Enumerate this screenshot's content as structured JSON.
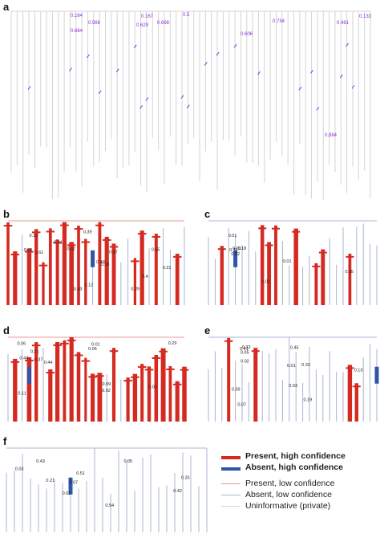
{
  "figure": {
    "panels": [
      "a",
      "b",
      "c",
      "d",
      "e",
      "f"
    ]
  },
  "colors": {
    "present_high": "#d42a22",
    "absent_high": "#2e56a8",
    "present_low": "#e59b97",
    "absent_low": "#a8b5d2",
    "uninformative": "#d4d4d4",
    "label_purple": "#8a2bd6",
    "label_black": "#222222"
  },
  "panel_a": {
    "labels": [
      "0.164",
      "0.566",
      "0.664",
      "0.167",
      "0.698",
      "0.606",
      "0.734",
      "0.461",
      "0.133",
      "0.884",
      "0.5",
      "0.629"
    ]
  },
  "panel_b": {
    "labels": [
      "0.31",
      "0.42",
      "0.33",
      "0.61",
      "0.4",
      "0.46",
      "0.87",
      "0.13",
      "0.43",
      "0.29",
      "0.12",
      "0.39",
      "0.55",
      "0.01",
      "0.05"
    ]
  },
  "panel_c": {
    "labels": [
      "0.11",
      "0.01",
      "0.18",
      "0.01",
      "0.02",
      "0.02",
      "0.01",
      "0.05"
    ]
  },
  "panel_d": {
    "labels": [
      "0.21",
      "0.11",
      "0.01",
      "0.06",
      "0.44",
      "0.29",
      "0.44",
      "0.09",
      "0.37",
      "0.05",
      "0.01",
      "0.02"
    ]
  },
  "panel_e": {
    "labels": [
      "0.05",
      "0.02",
      "0.01",
      "0.39",
      "0.32",
      "0.41",
      "0.33",
      "0.45",
      "0.19",
      "0.13",
      "0.03",
      "0.07"
    ]
  },
  "panel_f": {
    "labels": [
      "0.05",
      "0.07",
      "0.42",
      "0.54",
      "0.51",
      "0.43",
      "0.21",
      "0.01",
      "0.03",
      "0.33"
    ]
  },
  "legend": {
    "items": [
      {
        "label": "Present, high confidence",
        "color": "#d42a22",
        "weight": "high"
      },
      {
        "label": "Absent, high confidence",
        "color": "#2e56a8",
        "weight": "high"
      },
      {
        "label": "Present, low confidence",
        "color": "#e59b97",
        "weight": "low"
      },
      {
        "label": "Absent, low confidence",
        "color": "#a8b5d2",
        "weight": "low"
      },
      {
        "label": "Uninformative (private)",
        "color": "#d4d4d4",
        "weight": "low"
      }
    ]
  }
}
